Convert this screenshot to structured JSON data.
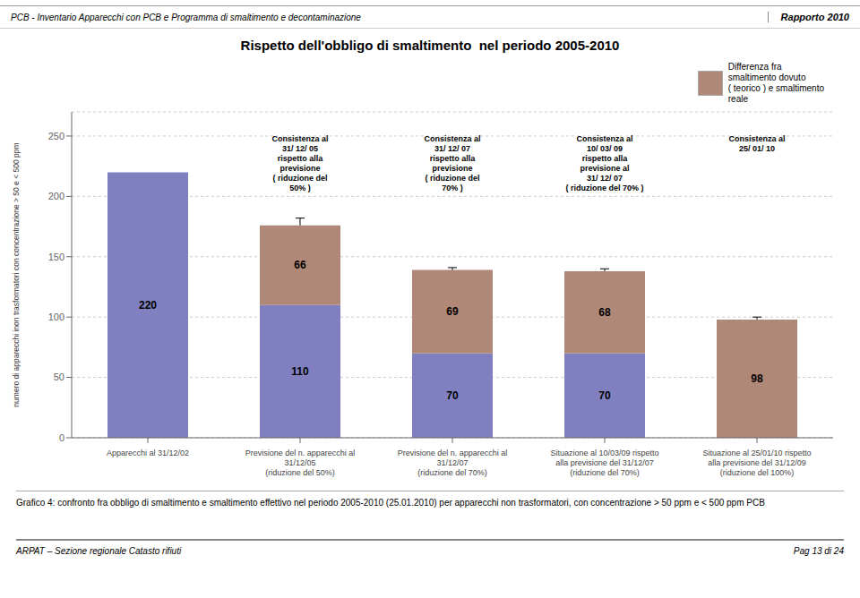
{
  "chart_data": {
    "type": "bar",
    "stacked": true,
    "title": "Rispetto dell'obbligo di smaltimento  nel periodo 2005-2010",
    "ylabel": "numero di apparecchi inon trasformatori con concentrazione > 50 e < 500 ppm",
    "categories": [
      "Apparecchi al 31/12/02",
      "Previsione del n. apparecchi al\n31/12/05\n(riduzione del 50%)",
      "Previsione del n. apparecchi al\n31/12/07\n(riduzione del 70%)",
      "Situazione al 10/03/09 rispetto\nalla previsione del 31/12/07\n(riduzione del 70%)",
      "Situazione al 25/01/10 rispetto\nalla previsione del 31/12/09\n(riduzione del 100%)"
    ],
    "series": [
      {
        "color": "#8080c0",
        "values": [
          220,
          110,
          70,
          70,
          0
        ]
      },
      {
        "name": "Differenza fra\nsmaltimento dovuto\n( teorico ) e smaltimento\nreale",
        "color": "#b08878",
        "values": [
          0,
          66,
          69,
          68,
          98
        ]
      }
    ],
    "ylim": [
      0,
      270
    ],
    "yticks": [
      0,
      50,
      100,
      150,
      200,
      250
    ],
    "grid": true,
    "legend": "top",
    "data_labels": true,
    "annotations": [
      {
        "category": "Previsione del n. apparecchi al\n31/12/05\n(riduzione del 50%)",
        "text": "Consistenza al\n31/ 12/ 05\nrispetto alla\nprevisione\n( riduzione del\n50% )",
        "y": 252,
        "line_to": 182
      },
      {
        "category": "Previsione del n. apparecchi al\n31/12/07\n(riduzione del 70%)",
        "text": "Consistenza al\n31/ 12/ 07\nrispetto alla\nprevisione\n( riduzione del\n70% )",
        "y": 252,
        "line_to": 141
      },
      {
        "category": "Situazione al 10/03/09 rispetto\nalla previsione del 31/12/07\n(riduzione del 70%)",
        "text": "Consistenza al\n10/ 03/ 09\nrispetto alla\nprevisione al\n31/ 12/ 07\n( riduzione del 70% )",
        "y": 252,
        "line_to": 140
      },
      {
        "category": "Situazione al 25/01/10 rispetto\nalla previsione del 31/12/09\n(riduzione del 100%)",
        "text": "Consistenza al\n25/ 01/ 10",
        "y": 252,
        "line_to": 100
      }
    ],
    "header_left": "PCB - Inventario Apparecchi con PCB e Programma di smaltimento e decontaminazione",
    "header_right": "Rapporto 2010",
    "caption": "Grafico 4: confronto fra obbligo di smaltimento e smaltimento effettivo nel periodo 2005-2010 (25.01.2010) per apparecchi non trasformatori, con concentrazione > 50 ppm e < 500 ppm PCB",
    "footer_left": "ARPAT – Sezione regionale Catasto rifiuti",
    "footer_right": "Pag 13 di 24"
  }
}
